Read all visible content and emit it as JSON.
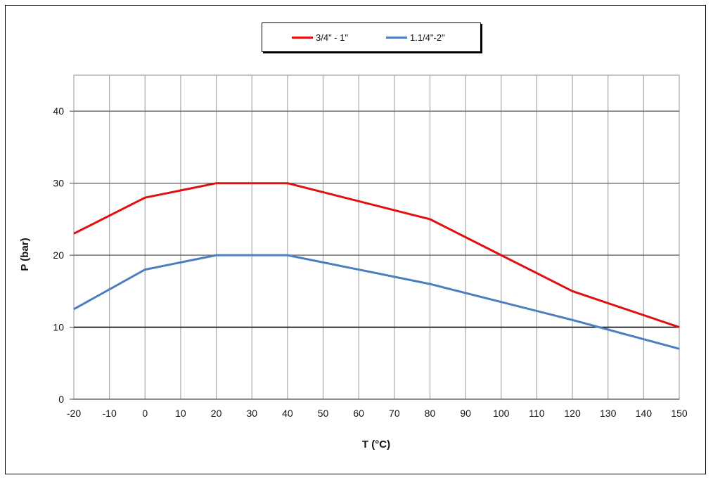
{
  "chart_data": {
    "type": "line",
    "title": "",
    "xlabel": "T (°C)",
    "ylabel": "P (bar)",
    "xlim": [
      -20,
      150
    ],
    "ylim": [
      0,
      45
    ],
    "x_ticks": [
      -20,
      -10,
      0,
      10,
      20,
      30,
      40,
      50,
      60,
      70,
      80,
      90,
      100,
      110,
      120,
      130,
      140,
      150
    ],
    "y_ticks": [
      0,
      10,
      20,
      30,
      40
    ],
    "grid": true,
    "legend_position": "top-center",
    "series": [
      {
        "name": "3/4\" - 1\"",
        "color": "#e01010",
        "x": [
          -20,
          0,
          20,
          40,
          80,
          100,
          120,
          150
        ],
        "y": [
          23,
          28,
          30,
          30,
          25,
          20,
          15,
          10
        ]
      },
      {
        "name": "1.1/4\"-2\"",
        "color": "#4a7ebf",
        "x": [
          -20,
          0,
          20,
          40,
          80,
          120,
          150
        ],
        "y": [
          12.5,
          18,
          20,
          20,
          16,
          11,
          7
        ]
      }
    ]
  }
}
